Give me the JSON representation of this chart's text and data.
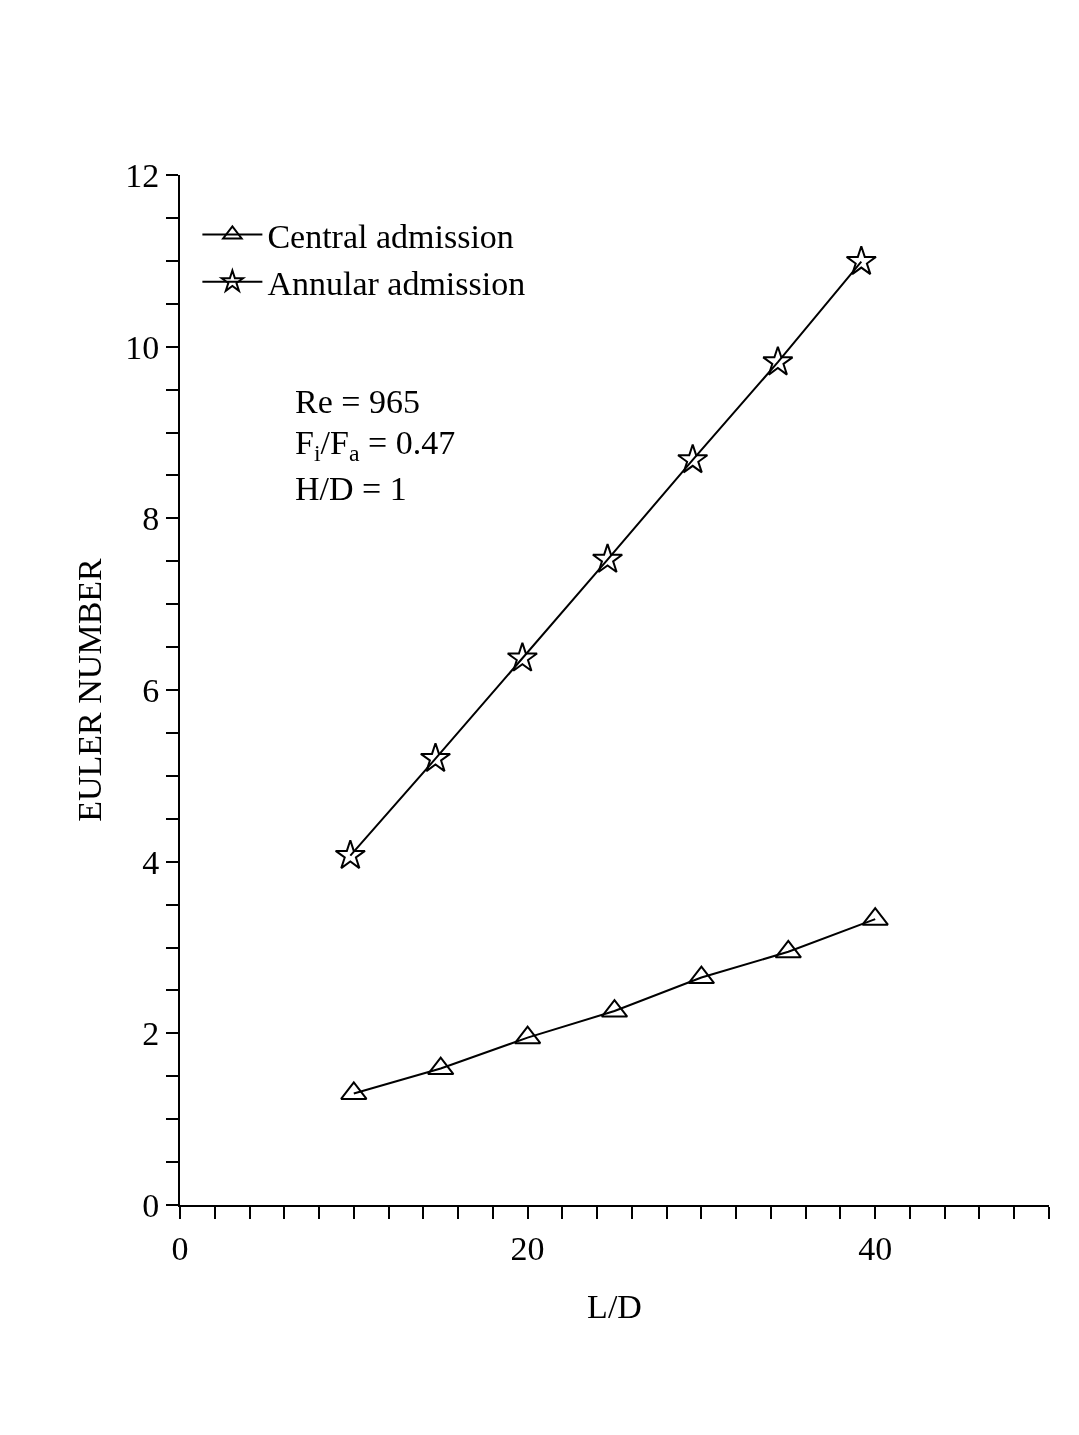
{
  "chart_data": {
    "type": "line",
    "xlabel": "L/D",
    "ylabel": "EULER NUMBER",
    "xlim": [
      0,
      50
    ],
    "ylim": [
      0,
      12
    ],
    "xticks": [
      0,
      {
        "value": 2,
        "label": null
      },
      {
        "value": 4,
        "label": null
      },
      {
        "value": 6,
        "label": null
      },
      {
        "value": 8,
        "label": null
      },
      {
        "value": 10,
        "label": null
      },
      {
        "value": 12,
        "label": null
      },
      {
        "value": 14,
        "label": null
      },
      {
        "value": 16,
        "label": null
      },
      {
        "value": 18,
        "label": null
      },
      20,
      {
        "value": 22,
        "label": null
      },
      {
        "value": 24,
        "label": null
      },
      {
        "value": 26,
        "label": null
      },
      {
        "value": 28,
        "label": null
      },
      {
        "value": 30,
        "label": null
      },
      {
        "value": 32,
        "label": null
      },
      {
        "value": 34,
        "label": null
      },
      {
        "value": 36,
        "label": null
      },
      {
        "value": 38,
        "label": null
      },
      40,
      {
        "value": 42,
        "label": null
      },
      {
        "value": 44,
        "label": null
      },
      {
        "value": 46,
        "label": null
      },
      {
        "value": 48,
        "label": null
      },
      {
        "value": 50,
        "label": null
      }
    ],
    "yticks": [
      0,
      {
        "value": 0.5,
        "label": null
      },
      {
        "value": 1,
        "label": null
      },
      {
        "value": 1.5,
        "label": null
      },
      2,
      {
        "value": 2.5,
        "label": null
      },
      {
        "value": 3,
        "label": null
      },
      {
        "value": 3.5,
        "label": null
      },
      4,
      {
        "value": 4.5,
        "label": null
      },
      {
        "value": 5,
        "label": null
      },
      {
        "value": 5.5,
        "label": null
      },
      6,
      {
        "value": 6.5,
        "label": null
      },
      {
        "value": 7,
        "label": null
      },
      {
        "value": 7.5,
        "label": null
      },
      8,
      {
        "value": 8.5,
        "label": null
      },
      {
        "value": 9,
        "label": null
      },
      {
        "value": 9.5,
        "label": null
      },
      10,
      {
        "value": 10.5,
        "label": null
      },
      {
        "value": 11,
        "label": null
      },
      {
        "value": 11.5,
        "label": null
      },
      12
    ],
    "grid": false,
    "legend": "top left",
    "line_style": "solid",
    "annotations": [
      "Re = 965",
      "F$_{i}$/F$_{a}$ = 0.47",
      "H/D = 1"
    ],
    "series": [
      {
        "name": "Central admission",
        "color": "#000000",
        "marker": "triangle",
        "x": [
          10,
          15,
          20,
          25,
          30,
          35,
          40
        ],
        "values": [
          1.3,
          1.59,
          1.95,
          2.26,
          2.65,
          2.95,
          3.33
        ]
      },
      {
        "name": "Annular admission",
        "color": "#000000",
        "marker": "star",
        "x": [
          9.8,
          14.7,
          19.7,
          24.6,
          29.5,
          34.4,
          39.2
        ],
        "values": [
          4.07,
          5.2,
          6.37,
          7.52,
          8.68,
          9.82,
          10.99
        ]
      }
    ]
  }
}
